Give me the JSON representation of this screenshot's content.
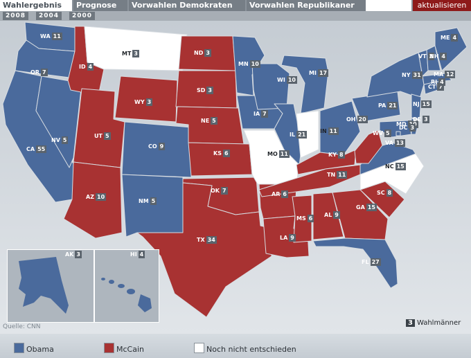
{
  "tabs": [
    {
      "label": "Wahlergebnis",
      "active": true
    },
    {
      "label": "Prognose"
    },
    {
      "label": "Vorwahlen Demokraten"
    },
    {
      "label": "Vorwahlen Republikaner"
    }
  ],
  "update_label": "aktualisieren",
  "years": [
    "2008",
    "2004",
    "2000"
  ],
  "source": "Quelle: CNN",
  "ev_legend": {
    "value": "3",
    "label": "Wahlmänner"
  },
  "legend": [
    {
      "label": "Obama",
      "color": "#4a6a9c"
    },
    {
      "label": "McCain",
      "color": "#a83232"
    },
    {
      "label": "Noch nicht entschieden",
      "color": "#ffffff"
    }
  ],
  "colors": {
    "obama": "#4a6a9c",
    "mccain": "#a83232",
    "undecided": "#ffffff"
  },
  "states": [
    {
      "abbr": "WA",
      "ev": "11",
      "winner": "obama"
    },
    {
      "abbr": "OR",
      "ev": "7",
      "winner": "obama"
    },
    {
      "abbr": "CA",
      "ev": "55",
      "winner": "obama"
    },
    {
      "abbr": "NV",
      "ev": "5",
      "winner": "obama"
    },
    {
      "abbr": "ID",
      "ev": "4",
      "winner": "mccain"
    },
    {
      "abbr": "MT",
      "ev": "3",
      "winner": "undecided"
    },
    {
      "abbr": "WY",
      "ev": "3",
      "winner": "mccain"
    },
    {
      "abbr": "UT",
      "ev": "5",
      "winner": "mccain"
    },
    {
      "abbr": "AZ",
      "ev": "10",
      "winner": "mccain"
    },
    {
      "abbr": "CO",
      "ev": "9",
      "winner": "obama"
    },
    {
      "abbr": "NM",
      "ev": "5",
      "winner": "obama"
    },
    {
      "abbr": "ND",
      "ev": "3",
      "winner": "mccain"
    },
    {
      "abbr": "SD",
      "ev": "3",
      "winner": "mccain"
    },
    {
      "abbr": "NE",
      "ev": "5",
      "winner": "mccain"
    },
    {
      "abbr": "KS",
      "ev": "6",
      "winner": "mccain"
    },
    {
      "abbr": "OK",
      "ev": "7",
      "winner": "mccain"
    },
    {
      "abbr": "TX",
      "ev": "34",
      "winner": "mccain"
    },
    {
      "abbr": "MN",
      "ev": "10",
      "winner": "obama"
    },
    {
      "abbr": "IA",
      "ev": "7",
      "winner": "obama"
    },
    {
      "abbr": "MO",
      "ev": "11",
      "winner": "undecided"
    },
    {
      "abbr": "AR",
      "ev": "6",
      "winner": "mccain"
    },
    {
      "abbr": "LA",
      "ev": "9",
      "winner": "mccain"
    },
    {
      "abbr": "WI",
      "ev": "10",
      "winner": "obama"
    },
    {
      "abbr": "IL",
      "ev": "21",
      "winner": "obama"
    },
    {
      "abbr": "MI",
      "ev": "17",
      "winner": "obama"
    },
    {
      "abbr": "IN",
      "ev": "11",
      "winner": "undecided"
    },
    {
      "abbr": "OH",
      "ev": "20",
      "winner": "obama"
    },
    {
      "abbr": "KY",
      "ev": "8",
      "winner": "mccain"
    },
    {
      "abbr": "TN",
      "ev": "11",
      "winner": "mccain"
    },
    {
      "abbr": "MS",
      "ev": "6",
      "winner": "mccain"
    },
    {
      "abbr": "AL",
      "ev": "9",
      "winner": "mccain"
    },
    {
      "abbr": "GA",
      "ev": "15",
      "winner": "mccain"
    },
    {
      "abbr": "FL",
      "ev": "27",
      "winner": "obama"
    },
    {
      "abbr": "SC",
      "ev": "8",
      "winner": "mccain"
    },
    {
      "abbr": "NC",
      "ev": "15",
      "winner": "undecided"
    },
    {
      "abbr": "VA",
      "ev": "13",
      "winner": "obama"
    },
    {
      "abbr": "WV",
      "ev": "5",
      "winner": "mccain"
    },
    {
      "abbr": "PA",
      "ev": "21",
      "winner": "obama"
    },
    {
      "abbr": "NY",
      "ev": "31",
      "winner": "obama"
    },
    {
      "abbr": "MD",
      "ev": "10",
      "winner": "obama"
    },
    {
      "abbr": "DE",
      "ev": "3",
      "winner": "obama"
    },
    {
      "abbr": "DC",
      "ev": "3",
      "winner": "obama"
    },
    {
      "abbr": "NJ",
      "ev": "15",
      "winner": "obama"
    },
    {
      "abbr": "CT",
      "ev": "7",
      "winner": "obama"
    },
    {
      "abbr": "RI",
      "ev": "4",
      "winner": "obama"
    },
    {
      "abbr": "MA",
      "ev": "12",
      "winner": "obama"
    },
    {
      "abbr": "VT",
      "ev": "3",
      "winner": "obama"
    },
    {
      "abbr": "NH",
      "ev": "4",
      "winner": "obama"
    },
    {
      "abbr": "ME",
      "ev": "4",
      "winner": "obama"
    },
    {
      "abbr": "AK",
      "ev": "3",
      "winner": "obama"
    },
    {
      "abbr": "HI",
      "ev": "4",
      "winner": "obama"
    }
  ]
}
